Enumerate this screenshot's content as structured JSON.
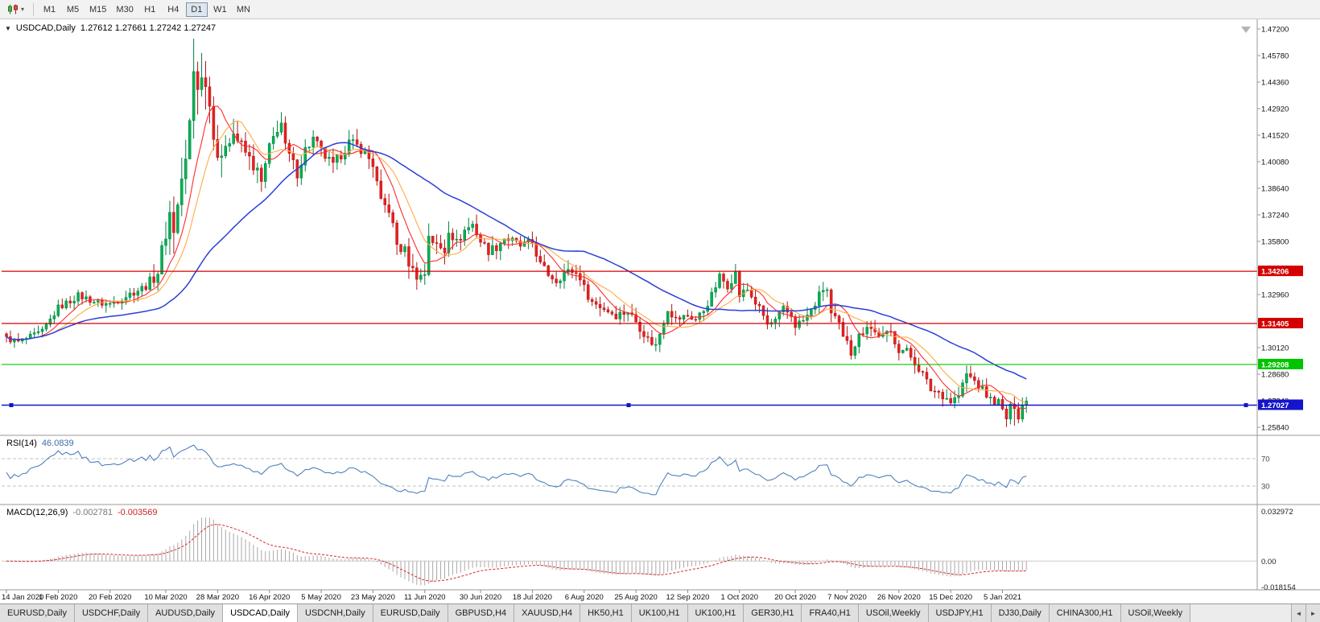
{
  "toolbar": {
    "chart_icon_caret": "▾",
    "timeframes": [
      {
        "label": "M1",
        "active": false
      },
      {
        "label": "M5",
        "active": false
      },
      {
        "label": "M15",
        "active": false
      },
      {
        "label": "M30",
        "active": false
      },
      {
        "label": "H1",
        "active": false
      },
      {
        "label": "H4",
        "active": false
      },
      {
        "label": "D1",
        "active": true
      },
      {
        "label": "W1",
        "active": false
      },
      {
        "label": "MN",
        "active": false
      }
    ]
  },
  "chart": {
    "collapse_icon": "▼",
    "title": "USDCAD,Daily",
    "ohlc": "1.27612 1.27661 1.27242 1.27247",
    "price_axis": [
      "1.47200",
      "1.45780",
      "1.44360",
      "1.42920",
      "1.41520",
      "1.40080",
      "1.38640",
      "1.37240",
      "1.35800",
      "1.34360",
      "1.32960",
      "1.31540",
      "1.30120",
      "1.28680",
      "1.27240",
      "1.25840"
    ],
    "hlines": [
      {
        "label": "1.34206",
        "price": 1.34206,
        "color": "#d40000",
        "selected": false
      },
      {
        "label": "1.31405",
        "price": 1.31405,
        "color": "#d40000",
        "selected": false
      },
      {
        "label": "1.29208",
        "price": 1.29208,
        "color": "#00c400",
        "selected": false
      },
      {
        "label": "1.27027",
        "price": 1.27027,
        "color": "#1414cc",
        "selected": true
      }
    ],
    "colors": {
      "up": "#00b050",
      "up_stroke": "#008040",
      "down": "#e82020",
      "down_stroke": "#b01414",
      "ma_fast": "#ff2a2a",
      "ma_mid": "#ffaa44",
      "ma_slow": "#2b3fd6"
    }
  },
  "rsi": {
    "label": "RSI(14)",
    "value": "46.0839",
    "upper": "70",
    "lower": "30",
    "color": "#4f81bd"
  },
  "macd": {
    "label": "MACD(12,26,9)",
    "value_main": "-0.002781",
    "value_signal": "-0.003569",
    "axis_max": "0.032972",
    "axis_zero": "0.00",
    "axis_min": "-0.018154",
    "hist_color": "#a8a8a8",
    "signal_color": "#dd2222"
  },
  "dates": [
    "14 Jan 2020",
    "1 Feb 2020",
    "20 Feb 2020",
    "10 Mar 2020",
    "28 Mar 2020",
    "16 Apr 2020",
    "5 May 2020",
    "23 May 2020",
    "11 Jun 2020",
    "30 Jun 2020",
    "18 Jul 2020",
    "6 Aug 2020",
    "25 Aug 2020",
    "12 Sep 2020",
    "1 Oct 2020",
    "20 Oct 2020",
    "7 Nov 2020",
    "26 Nov 2020",
    "15 Dec 2020",
    "5 Jan 2021"
  ],
  "tabbar": {
    "scroll_left": "◄",
    "scroll_right": "►",
    "tabs": [
      {
        "label": "EURUSD,Daily",
        "active": false
      },
      {
        "label": "USDCHF,Daily",
        "active": false
      },
      {
        "label": "AUDUSD,Daily",
        "active": false
      },
      {
        "label": "USDCAD,Daily",
        "active": true
      },
      {
        "label": "USDCNH,Daily",
        "active": false
      },
      {
        "label": "EURUSD,Daily",
        "active": false
      },
      {
        "label": "GBPUSD,H4",
        "active": false
      },
      {
        "label": "XAUUSD,H4",
        "active": false
      },
      {
        "label": "HK50,H1",
        "active": false
      },
      {
        "label": "UK100,H1",
        "active": false
      },
      {
        "label": "UK100,H1",
        "active": false
      },
      {
        "label": "GER30,H1",
        "active": false
      },
      {
        "label": "FRA40,H1",
        "active": false
      },
      {
        "label": "USOil,Weekly",
        "active": false
      },
      {
        "label": "USDJPY,H1",
        "active": false
      },
      {
        "label": "DJ30,Daily",
        "active": false
      },
      {
        "label": "CHINA300,H1",
        "active": false
      },
      {
        "label": "USOil,Weekly",
        "active": false
      }
    ]
  },
  "chart_data": {
    "type": "candlestick",
    "symbol": "USDCAD",
    "timeframe": "Daily",
    "bars": 257,
    "ylim": [
      1.2584,
      1.472
    ],
    "last_close": 1.27247,
    "label_bars": [
      0,
      13,
      26,
      40,
      53,
      66,
      79,
      92,
      105,
      119,
      132,
      145,
      158,
      171,
      184,
      198,
      211,
      224,
      237,
      250
    ],
    "close_anchors": [
      [
        0,
        1.306
      ],
      [
        3,
        1.3042
      ],
      [
        6,
        1.3068
      ],
      [
        9,
        1.3095
      ],
      [
        13,
        1.3225
      ],
      [
        16,
        1.3262
      ],
      [
        18,
        1.329
      ],
      [
        21,
        1.3268
      ],
      [
        23,
        1.325
      ],
      [
        26,
        1.3245
      ],
      [
        29,
        1.3278
      ],
      [
        32,
        1.331
      ],
      [
        34,
        1.333
      ],
      [
        36,
        1.3362
      ],
      [
        38,
        1.342
      ],
      [
        40,
        1.363
      ],
      [
        41,
        1.373
      ],
      [
        42,
        1.3652
      ],
      [
        43,
        1.377
      ],
      [
        44,
        1.392
      ],
      [
        45,
        1.3992
      ],
      [
        46,
        1.421
      ],
      [
        47,
        1.4498
      ],
      [
        48,
        1.4432
      ],
      [
        49,
        1.4445
      ],
      [
        50,
        1.4468
      ],
      [
        51,
        1.431
      ],
      [
        52,
        1.419
      ],
      [
        53,
        1.4052
      ],
      [
        54,
        1.399
      ],
      [
        55,
        1.412
      ],
      [
        57,
        1.4162
      ],
      [
        59,
        1.409
      ],
      [
        61,
        1.4022
      ],
      [
        63,
        1.3952
      ],
      [
        64,
        1.3892
      ],
      [
        66,
        1.4078
      ],
      [
        68,
        1.419
      ],
      [
        69,
        1.4215
      ],
      [
        70,
        1.4082
      ],
      [
        73,
        1.395
      ],
      [
        75,
        1.4072
      ],
      [
        77,
        1.413
      ],
      [
        79,
        1.4062
      ],
      [
        82,
        1.3982
      ],
      [
        84,
        1.405
      ],
      [
        86,
        1.411
      ],
      [
        89,
        1.408
      ],
      [
        92,
        1.3996
      ],
      [
        94,
        1.3782
      ],
      [
        96,
        1.3756
      ],
      [
        98,
        1.3562
      ],
      [
        100,
        1.3525
      ],
      [
        102,
        1.3422
      ],
      [
        104,
        1.3392
      ],
      [
        105,
        1.341
      ],
      [
        106,
        1.3622
      ],
      [
        108,
        1.3552
      ],
      [
        110,
        1.3532
      ],
      [
        111,
        1.365
      ],
      [
        113,
        1.3572
      ],
      [
        115,
        1.364
      ],
      [
        117,
        1.3672
      ],
      [
        119,
        1.3582
      ],
      [
        121,
        1.3532
      ],
      [
        123,
        1.3552
      ],
      [
        125,
        1.36
      ],
      [
        127,
        1.3582
      ],
      [
        129,
        1.3556
      ],
      [
        132,
        1.3576
      ],
      [
        134,
        1.3456
      ],
      [
        136,
        1.3406
      ],
      [
        138,
        1.3372
      ],
      [
        140,
        1.3412
      ],
      [
        142,
        1.3422
      ],
      [
        144,
        1.3392
      ],
      [
        145,
        1.333
      ],
      [
        147,
        1.3256
      ],
      [
        150,
        1.3222
      ],
      [
        153,
        1.3186
      ],
      [
        156,
        1.3206
      ],
      [
        158,
        1.3152
      ],
      [
        161,
        1.3056
      ],
      [
        163,
        1.3022
      ],
      [
        166,
        1.3222
      ],
      [
        168,
        1.3162
      ],
      [
        171,
        1.3182
      ],
      [
        173,
        1.3162
      ],
      [
        175,
        1.3212
      ],
      [
        177,
        1.329
      ],
      [
        179,
        1.339
      ],
      [
        181,
        1.3346
      ],
      [
        183,
        1.341
      ],
      [
        184,
        1.3292
      ],
      [
        186,
        1.3322
      ],
      [
        188,
        1.3252
      ],
      [
        190,
        1.3182
      ],
      [
        191,
        1.3132
      ],
      [
        193,
        1.3152
      ],
      [
        195,
        1.3216
      ],
      [
        197,
        1.3182
      ],
      [
        198,
        1.3132
      ],
      [
        200,
        1.3156
      ],
      [
        202,
        1.3206
      ],
      [
        204,
        1.329
      ],
      [
        205,
        1.3326
      ],
      [
        206,
        1.332
      ],
      [
        207,
        1.3186
      ],
      [
        209,
        1.3132
      ],
      [
        210,
        1.3056
      ],
      [
        211,
        1.3062
      ],
      [
        212,
        1.2992
      ],
      [
        214,
        1.3072
      ],
      [
        216,
        1.3136
      ],
      [
        218,
        1.3092
      ],
      [
        220,
        1.3072
      ],
      [
        222,
        1.3092
      ],
      [
        224,
        1.3002
      ],
      [
        226,
        1.2992
      ],
      [
        228,
        1.2932
      ],
      [
        230,
        1.2868
      ],
      [
        232,
        1.2786
      ],
      [
        234,
        1.2772
      ],
      [
        236,
        1.2742
      ],
      [
        237,
        1.2722
      ],
      [
        239,
        1.2752
      ],
      [
        241,
        1.2868
      ],
      [
        243,
        1.2832
      ],
      [
        245,
        1.2782
      ],
      [
        247,
        1.2732
      ],
      [
        249,
        1.2718
      ],
      [
        250,
        1.2672
      ],
      [
        251,
        1.2632
      ],
      [
        252,
        1.2688
      ],
      [
        253,
        1.2702
      ],
      [
        254,
        1.2646
      ],
      [
        255,
        1.2706
      ],
      [
        256,
        1.2725
      ]
    ],
    "vol_anchors": [
      [
        0,
        0.0045
      ],
      [
        34,
        0.0058
      ],
      [
        39,
        0.0125
      ],
      [
        44,
        0.0195
      ],
      [
        52,
        0.0185
      ],
      [
        56,
        0.0118
      ],
      [
        62,
        0.01
      ],
      [
        70,
        0.009
      ],
      [
        80,
        0.008
      ],
      [
        92,
        0.0088
      ],
      [
        100,
        0.0098
      ],
      [
        106,
        0.0108
      ],
      [
        112,
        0.008
      ],
      [
        120,
        0.007
      ],
      [
        132,
        0.0064
      ],
      [
        146,
        0.007
      ],
      [
        160,
        0.0064
      ],
      [
        172,
        0.006
      ],
      [
        184,
        0.0068
      ],
      [
        198,
        0.006
      ],
      [
        206,
        0.0068
      ],
      [
        212,
        0.0074
      ],
      [
        224,
        0.006
      ],
      [
        232,
        0.0064
      ],
      [
        241,
        0.0068
      ],
      [
        250,
        0.0064
      ],
      [
        256,
        0.0058
      ]
    ],
    "peak_high": {
      "bar": 47,
      "price": 1.4668
    },
    "deep_low": {
      "bar": 253,
      "price": 1.2592
    },
    "indicators": {
      "ma_periods": [
        8,
        13,
        40
      ],
      "rsi_period": 14,
      "macd": [
        12,
        26,
        9
      ]
    },
    "rsi_levels": [
      70,
      30
    ],
    "macd_scale": {
      "max": 0.032972,
      "min": -0.018154
    }
  }
}
